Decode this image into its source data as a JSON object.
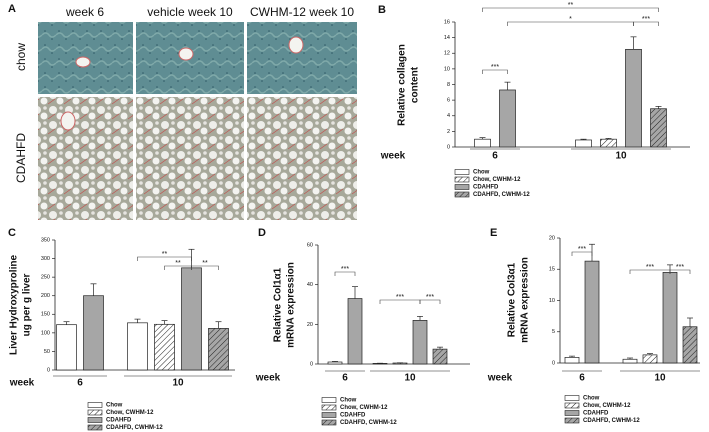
{
  "panel_a": {
    "label": "A",
    "columns": [
      "week 6",
      "vehicle week 10",
      "CWHM-12 week 10"
    ],
    "rows": [
      "chow",
      "CDAHFD"
    ]
  },
  "chart_data": [
    {
      "type": "bar",
      "panel": "B",
      "ylabel": [
        "Relative collagen",
        "content"
      ],
      "xlabel": "week",
      "categories": [
        "6",
        "10"
      ],
      "series": [
        {
          "name": "Chow",
          "color": "#ffffff",
          "hatch": false,
          "values": [
            1.0,
            0.9
          ],
          "errors": [
            0.2,
            0.1
          ]
        },
        {
          "name": "Chow, CWHM-12",
          "color": "#ffffff",
          "hatch": true,
          "values": [
            null,
            1.0
          ],
          "errors": [
            null,
            0.1
          ]
        },
        {
          "name": "CDAHFD",
          "color": "#a6a6a6",
          "hatch": false,
          "values": [
            7.3,
            12.5
          ],
          "errors": [
            1.0,
            1.6
          ]
        },
        {
          "name": "CDAHFD, CWHM-12",
          "color": "#a6a6a6",
          "hatch": true,
          "values": [
            null,
            4.9
          ],
          "errors": [
            null,
            0.3
          ]
        }
      ],
      "ylim": [
        0,
        16
      ],
      "yticks": [
        0,
        2,
        4,
        6,
        8,
        10,
        12,
        14,
        16
      ],
      "annotations": [
        "***",
        "*",
        "**",
        "***"
      ]
    },
    {
      "type": "bar",
      "panel": "C",
      "ylabel": [
        "Liver Hydroxyproline",
        "ug per g liver"
      ],
      "xlabel": "week",
      "categories": [
        "6",
        "10"
      ],
      "series": [
        {
          "name": "Chow",
          "color": "#ffffff",
          "hatch": false,
          "values": [
            122,
            127
          ],
          "errors": [
            8,
            10
          ]
        },
        {
          "name": "Chow, CWHM-12",
          "color": "#ffffff",
          "hatch": true,
          "values": [
            null,
            123
          ],
          "errors": [
            null,
            10
          ]
        },
        {
          "name": "CDAHFD",
          "color": "#a6a6a6",
          "hatch": false,
          "values": [
            200,
            275
          ],
          "errors": [
            32,
            50
          ]
        },
        {
          "name": "CDAHFD, CWHM-12",
          "color": "#a6a6a6",
          "hatch": true,
          "values": [
            null,
            112
          ],
          "errors": [
            null,
            18
          ]
        }
      ],
      "ylim": [
        0,
        350
      ],
      "yticks": [
        0,
        50,
        100,
        150,
        200,
        250,
        300,
        350
      ],
      "annotations": [
        "**",
        "**",
        "**"
      ]
    },
    {
      "type": "bar",
      "panel": "D",
      "ylabel": [
        "Relative Col1α1",
        "mRNA expression"
      ],
      "xlabel": "week",
      "categories": [
        "6",
        "10"
      ],
      "series": [
        {
          "name": "Chow",
          "color": "#ffffff",
          "hatch": false,
          "values": [
            1,
            0.3
          ],
          "errors": [
            0.3,
            0.1
          ]
        },
        {
          "name": "Chow, CWHM-12",
          "color": "#ffffff",
          "hatch": true,
          "values": [
            null,
            0.5
          ],
          "errors": [
            null,
            0.1
          ]
        },
        {
          "name": "CDAHFD",
          "color": "#a6a6a6",
          "hatch": false,
          "values": [
            33,
            22
          ],
          "errors": [
            6,
            2
          ]
        },
        {
          "name": "CDAHFD, CWHM-12",
          "color": "#a6a6a6",
          "hatch": true,
          "values": [
            null,
            7.5
          ],
          "errors": [
            null,
            1
          ]
        }
      ],
      "ylim": [
        0,
        60
      ],
      "yticks": [
        0,
        20,
        40,
        60
      ],
      "annotations": [
        "***",
        "***",
        "***"
      ]
    },
    {
      "type": "bar",
      "panel": "E",
      "ylabel": [
        "Relative Col3α1",
        "mRNA expression"
      ],
      "xlabel": "week",
      "categories": [
        "6",
        "10"
      ],
      "series": [
        {
          "name": "Chow",
          "color": "#ffffff",
          "hatch": false,
          "values": [
            0.9,
            0.6
          ],
          "errors": [
            0.2,
            0.2
          ]
        },
        {
          "name": "Chow, CWHM-12",
          "color": "#ffffff",
          "hatch": true,
          "values": [
            null,
            1.3
          ],
          "errors": [
            null,
            0.2
          ]
        },
        {
          "name": "CDAHFD",
          "color": "#a6a6a6",
          "hatch": false,
          "values": [
            16.3,
            14.5
          ],
          "errors": [
            2.7,
            1.2
          ]
        },
        {
          "name": "CDAHFD, CWHM-12",
          "color": "#a6a6a6",
          "hatch": true,
          "values": [
            null,
            5.8
          ],
          "errors": [
            null,
            1.4
          ]
        }
      ],
      "ylim": [
        0,
        20
      ],
      "yticks": [
        0,
        5,
        10,
        15,
        20
      ],
      "annotations": [
        "***",
        "***",
        "***"
      ]
    }
  ]
}
